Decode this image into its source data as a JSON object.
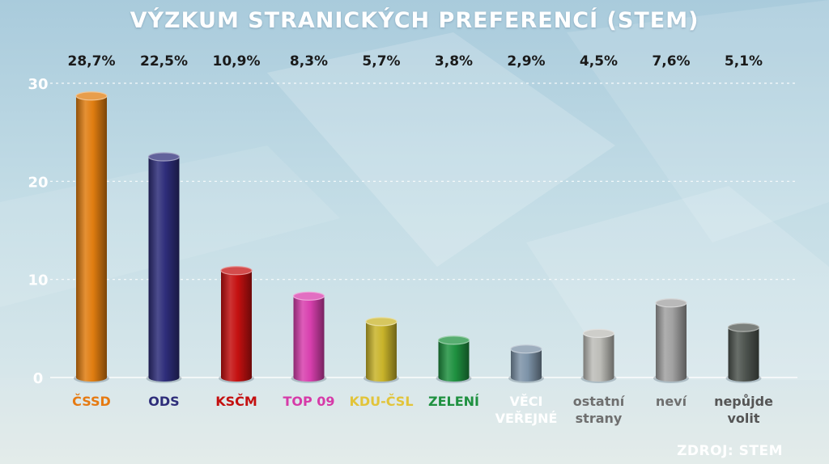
{
  "title": "VÝZKUM STRANICKÝCH PREFERENCÍ (STEM)",
  "source": "ZDROJ: STEM",
  "chart_data": {
    "type": "bar",
    "categories": [
      [
        "ČSSD"
      ],
      [
        "ODS"
      ],
      [
        "KSČM"
      ],
      [
        "TOP 09"
      ],
      [
        "KDU-ČSL"
      ],
      [
        "ZELENÍ"
      ],
      [
        "VĚCI",
        "VEŘEJNÉ"
      ],
      [
        "ostatní",
        "strany"
      ],
      [
        "neví"
      ],
      [
        "nepůjde",
        "volit"
      ]
    ],
    "values": [
      28.7,
      22.5,
      10.9,
      8.3,
      5.7,
      3.8,
      2.9,
      4.5,
      7.6,
      5.1
    ],
    "value_labels": [
      "28,7%",
      "22,5%",
      "10,9%",
      "8,3%",
      "5,7%",
      "3,8%",
      "2,9%",
      "4,5%",
      "7,6%",
      "5,1%"
    ],
    "ylim": [
      0,
      30
    ],
    "yticks": [
      0,
      10,
      20,
      30
    ],
    "grid": true,
    "colors": [
      "#e07d10",
      "#2e2d7a",
      "#c41010",
      "#d83fae",
      "#c9b42a",
      "#1f9140",
      "#7d93a8",
      "#bdbdb8",
      "#a1a1a1",
      "#4f5550"
    ],
    "label_colors": [
      "#e67a12",
      "#2e2d7a",
      "#c41010",
      "#d63aa8",
      "#e2c43a",
      "#1f9140",
      "#ffffff",
      "#6f6f6f",
      "#6f6f6f",
      "#555555"
    ]
  }
}
